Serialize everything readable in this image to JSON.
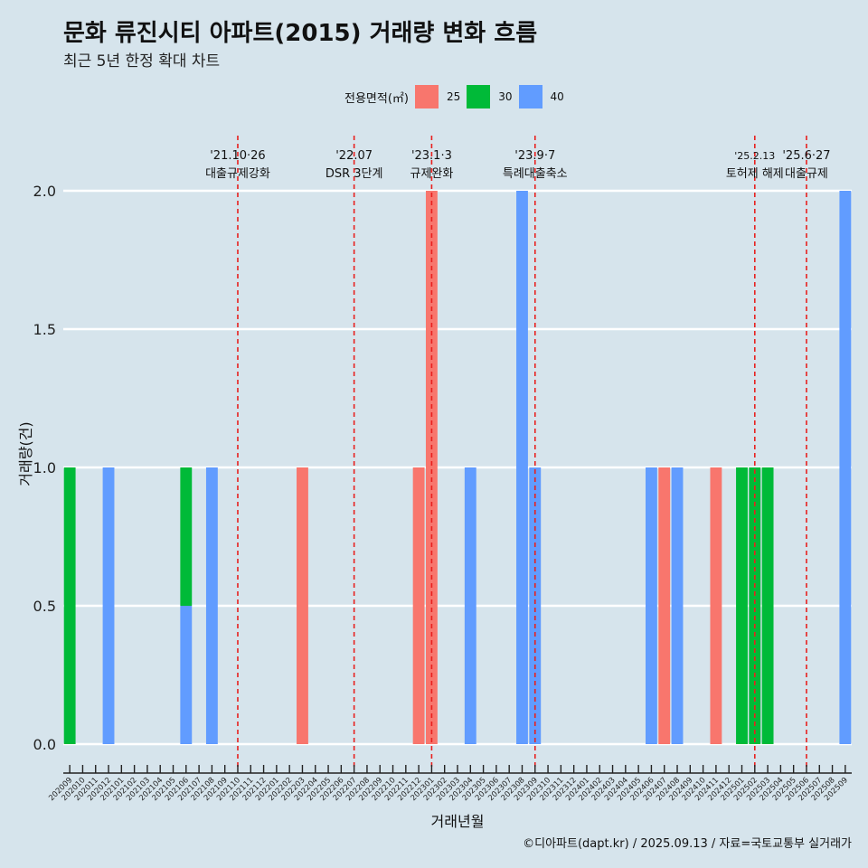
{
  "title": "문화 류진시티 아파트(2015) 거래량 변화 흐름",
  "subtitle": "최근 5년 한정 확대 차트",
  "legend": {
    "title": "전용면적(㎡)",
    "items": [
      {
        "label": "25",
        "color": "#f8766d"
      },
      {
        "label": "30",
        "color": "#00ba38"
      },
      {
        "label": "40",
        "color": "#619cff"
      }
    ]
  },
  "credit": "©디아파트(dapt.kr) / 2025.09.13 / 자료=국토교통부 실거래가",
  "chart_data": {
    "type": "bar",
    "stacked": true,
    "xlabel": "거래년월",
    "ylabel": "거래량(건)",
    "ylim": [
      0,
      2
    ],
    "yticks": [
      0.0,
      0.5,
      1.0,
      1.5,
      2.0
    ],
    "ytick_labels": [
      "0.0",
      "0.5",
      "1.0",
      "1.5",
      "2.0"
    ],
    "grid": true,
    "legend_position": "top",
    "categories": [
      "202009",
      "202010",
      "202011",
      "202012",
      "202101",
      "202102",
      "202103",
      "202104",
      "202105",
      "202106",
      "202107",
      "202108",
      "202109",
      "202110",
      "202111",
      "202112",
      "202201",
      "202202",
      "202203",
      "202204",
      "202205",
      "202206",
      "202207",
      "202208",
      "202209",
      "202210",
      "202211",
      "202212",
      "202301",
      "202302",
      "202303",
      "202304",
      "202305",
      "202306",
      "202307",
      "202308",
      "202309",
      "202310",
      "202311",
      "202312",
      "202401",
      "202402",
      "202403",
      "202404",
      "202405",
      "202406",
      "202407",
      "202408",
      "202409",
      "202410",
      "202411",
      "202412",
      "202501",
      "202502",
      "202503",
      "202504",
      "202505",
      "202506",
      "202507",
      "202508",
      "202509"
    ],
    "series": [
      {
        "name": "25",
        "color": "#f8766d",
        "points": [
          {
            "x": "202203",
            "y": 1
          },
          {
            "x": "202212",
            "y": 1
          },
          {
            "x": "202301",
            "y": 2
          },
          {
            "x": "202407",
            "y": 1
          },
          {
            "x": "202411",
            "y": 1
          }
        ]
      },
      {
        "name": "30",
        "color": "#00ba38",
        "points": [
          {
            "x": "202009",
            "y": 1
          },
          {
            "x": "202106",
            "y": 0.5
          },
          {
            "x": "202501",
            "y": 1
          },
          {
            "x": "202502",
            "y": 1
          },
          {
            "x": "202503",
            "y": 1
          }
        ]
      },
      {
        "name": "40",
        "color": "#619cff",
        "points": [
          {
            "x": "202012",
            "y": 1
          },
          {
            "x": "202106",
            "y": 0.5
          },
          {
            "x": "202108",
            "y": 1
          },
          {
            "x": "202304",
            "y": 1
          },
          {
            "x": "202308",
            "y": 2
          },
          {
            "x": "202309",
            "y": 1
          },
          {
            "x": "202406",
            "y": 1
          },
          {
            "x": "202408",
            "y": 1
          },
          {
            "x": "202509",
            "y": 2
          }
        ]
      }
    ],
    "annotations": [
      {
        "x": "202110",
        "date": "'21.10·26",
        "text": "대출규제강화",
        "color": "#e8201e"
      },
      {
        "x": "202207",
        "date": "'22.07",
        "text": "DSR 3단계",
        "color": "#e8201e"
      },
      {
        "x": "202301",
        "date": "'23.1·3",
        "text": "규제완화",
        "color": "#e8201e"
      },
      {
        "x": "202309",
        "date": "'23.9·7",
        "text": "특례대출축소",
        "color": "#e8201e"
      },
      {
        "x": "202502",
        "date": "'25.2.13",
        "text": "토허제 해제",
        "color": "#e8201e"
      },
      {
        "x": "202506",
        "date": "'25.6·27",
        "text": "대출규제",
        "color": "#e8201e"
      }
    ]
  }
}
